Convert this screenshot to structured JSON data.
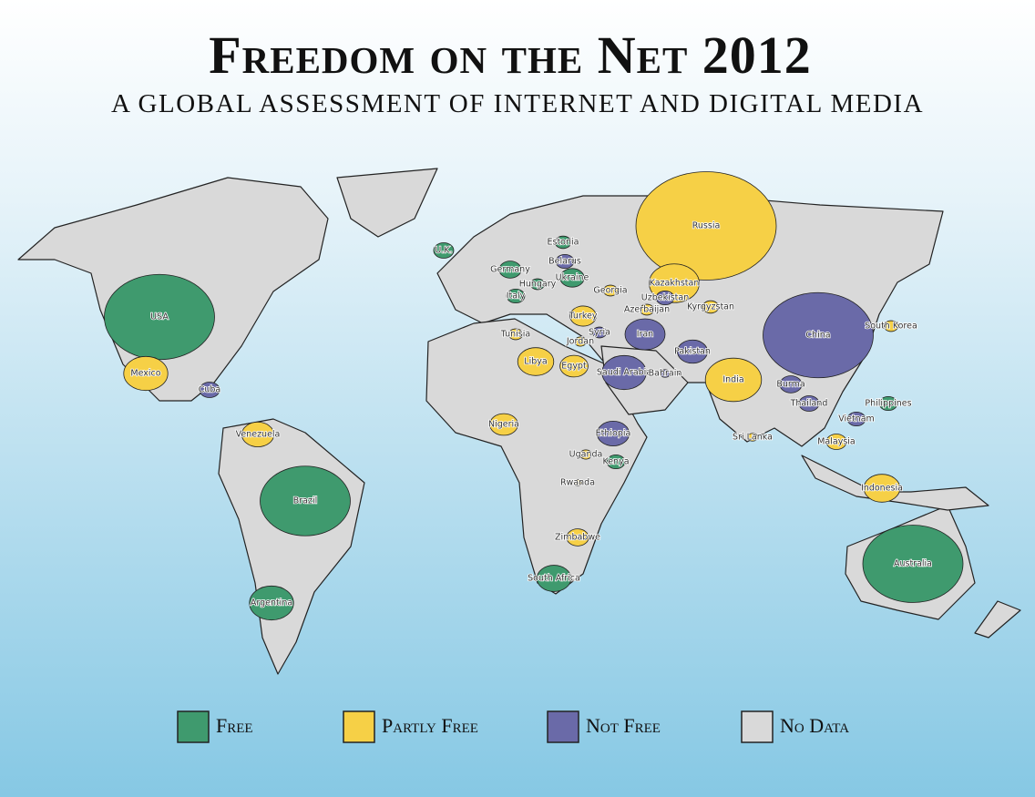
{
  "header": {
    "title": "Freedom on the Net 2012",
    "subtitle": "A GLOBAL ASSESSMENT OF INTERNET AND DIGITAL MEDIA"
  },
  "legend": [
    {
      "label": "Free",
      "color": "#3f9a6e"
    },
    {
      "label": "Partly Free",
      "color": "#f6d046"
    },
    {
      "label": "Not Free",
      "color": "#6a6aa8"
    },
    {
      "label": "No Data",
      "color": "#d9d9d9"
    }
  ],
  "countries": [
    {
      "name": "USA",
      "status": "Free"
    },
    {
      "name": "Mexico",
      "status": "Partly Free"
    },
    {
      "name": "Cuba",
      "status": "Not Free"
    },
    {
      "name": "Venezuela",
      "status": "Partly Free"
    },
    {
      "name": "Brazil",
      "status": "Free"
    },
    {
      "name": "Argentina",
      "status": "Free"
    },
    {
      "name": "U.K.",
      "status": "Free"
    },
    {
      "name": "Estonia",
      "status": "Free"
    },
    {
      "name": "Germany",
      "status": "Free"
    },
    {
      "name": "Belarus",
      "status": "Not Free"
    },
    {
      "name": "Ukraine",
      "status": "Free"
    },
    {
      "name": "Hungary",
      "status": "Free"
    },
    {
      "name": "Italy",
      "status": "Free"
    },
    {
      "name": "Georgia",
      "status": "Partly Free"
    },
    {
      "name": "Russia",
      "status": "Partly Free"
    },
    {
      "name": "Kazakhstan",
      "status": "Partly Free"
    },
    {
      "name": "Uzbekistan",
      "status": "Not Free"
    },
    {
      "name": "Kyrgyzstan",
      "status": "Partly Free"
    },
    {
      "name": "Azerbaijan",
      "status": "Partly Free"
    },
    {
      "name": "Turkey",
      "status": "Partly Free"
    },
    {
      "name": "Syria",
      "status": "Not Free"
    },
    {
      "name": "Jordan",
      "status": "Partly Free"
    },
    {
      "name": "Iran",
      "status": "Not Free"
    },
    {
      "name": "Pakistan",
      "status": "Not Free"
    },
    {
      "name": "China",
      "status": "Not Free"
    },
    {
      "name": "South Korea",
      "status": "Partly Free"
    },
    {
      "name": "Tunisia",
      "status": "Partly Free"
    },
    {
      "name": "Libya",
      "status": "Partly Free"
    },
    {
      "name": "Egypt",
      "status": "Partly Free"
    },
    {
      "name": "Saudi Arabia",
      "status": "Not Free"
    },
    {
      "name": "Bahrain",
      "status": "Not Free"
    },
    {
      "name": "India",
      "status": "Partly Free"
    },
    {
      "name": "Sri Lanka",
      "status": "Partly Free"
    },
    {
      "name": "Burma",
      "status": "Not Free"
    },
    {
      "name": "Thailand",
      "status": "Not Free"
    },
    {
      "name": "Vietnam",
      "status": "Not Free"
    },
    {
      "name": "Philippines",
      "status": "Free"
    },
    {
      "name": "Malaysia",
      "status": "Partly Free"
    },
    {
      "name": "Indonesia",
      "status": "Partly Free"
    },
    {
      "name": "Nigeria",
      "status": "Partly Free"
    },
    {
      "name": "Ethiopia",
      "status": "Not Free"
    },
    {
      "name": "Uganda",
      "status": "Partly Free"
    },
    {
      "name": "Kenya",
      "status": "Free"
    },
    {
      "name": "Rwanda",
      "status": "Partly Free"
    },
    {
      "name": "Zimbabwe",
      "status": "Partly Free"
    },
    {
      "name": "South Africa",
      "status": "Free"
    },
    {
      "name": "Australia",
      "status": "Free"
    }
  ]
}
